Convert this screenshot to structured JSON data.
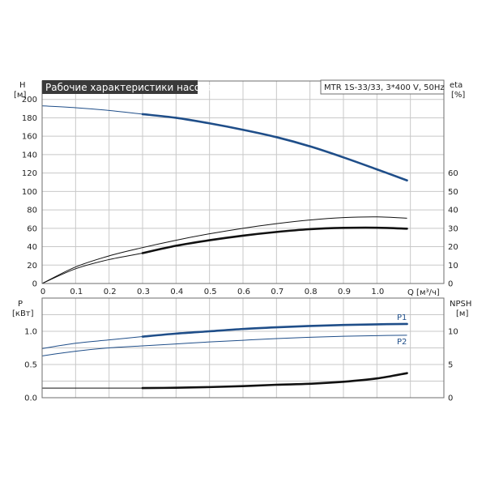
{
  "colors": {
    "accent": "#1f4e89",
    "ink": "#111111",
    "title_bg": "#3a3a3a"
  },
  "chart_data": [
    {
      "type": "line",
      "title": "Рабочие характеристики насоса",
      "subtitle": "MTR 1S-33/33, 3*400 V, 50Hz",
      "xlabel": "Q [м³/ч]",
      "ylabel": [
        "H",
        "[м]"
      ],
      "y2label": [
        "eta",
        "[%]"
      ],
      "xlim": [
        0,
        1.2
      ],
      "ylim": [
        0,
        220
      ],
      "y2lim": [
        0,
        110
      ],
      "grid": true,
      "x_ticks": [
        "0",
        "0.1",
        "0.2",
        "0.3",
        "0.4",
        "0.5",
        "0.6",
        "0.7",
        "0.8",
        "0.9",
        "1.0"
      ],
      "x_tick_values": [
        0,
        0.1,
        0.2,
        0.3,
        0.4,
        0.5,
        0.6,
        0.7,
        0.8,
        0.9,
        1.0
      ],
      "y_ticks": [
        "0",
        "20",
        "40",
        "60",
        "80",
        "100",
        "120",
        "140",
        "160",
        "180",
        "200"
      ],
      "y_tick_values": [
        0,
        20,
        40,
        60,
        80,
        100,
        120,
        140,
        160,
        180,
        200
      ],
      "y2_ticks": [
        "0",
        "10",
        "20",
        "30",
        "40",
        "50",
        "60"
      ],
      "y2_tick_values": [
        0,
        10,
        20,
        30,
        40,
        50,
        60
      ],
      "series": [
        {
          "axis": "left",
          "color": "#1f4e89",
          "x": [
            0,
            0.1,
            0.2,
            0.3,
            0.4,
            0.5,
            0.6,
            0.7,
            0.8,
            0.9,
            1.0,
            1.09
          ],
          "y": [
            193,
            191,
            188,
            184,
            180,
            174,
            167,
            159,
            149,
            137,
            124,
            112
          ],
          "bold_from": 0.3
        },
        {
          "axis": "right",
          "color": "#111111",
          "x": [
            0,
            0.1,
            0.2,
            0.3,
            0.4,
            0.5,
            0.6,
            0.7,
            0.8,
            0.9,
            1.0,
            1.09
          ],
          "y": [
            0,
            9,
            15,
            19.5,
            23.5,
            27,
            30,
            32.5,
            34.5,
            35.8,
            36.2,
            35.5
          ],
          "bold_from": 99
        },
        {
          "axis": "right",
          "color": "#111111",
          "x": [
            0,
            0.1,
            0.2,
            0.3,
            0.4,
            0.5,
            0.6,
            0.7,
            0.8,
            0.9,
            1.0,
            1.09
          ],
          "y": [
            0,
            8,
            13,
            16.5,
            20.5,
            23.5,
            26,
            28,
            29.5,
            30.2,
            30.3,
            29.8
          ],
          "bold_from": 0.3
        }
      ]
    },
    {
      "type": "line",
      "ylabel": [
        "P",
        "[кВт]"
      ],
      "y2label": [
        "NPSH",
        "[м]"
      ],
      "xlim": [
        0,
        1.2
      ],
      "ylim": [
        0,
        1.5
      ],
      "y2lim": [
        0,
        15
      ],
      "grid": true,
      "y_ticks": [
        "0.0",
        "0.5",
        "1.0"
      ],
      "y_tick_values": [
        0,
        0.5,
        1.0
      ],
      "y2_ticks": [
        "0",
        "5",
        "10"
      ],
      "y2_tick_values": [
        0,
        5,
        10
      ],
      "series": [
        {
          "name": "P1",
          "axis": "left",
          "color": "#1f4e89",
          "x": [
            0,
            0.1,
            0.2,
            0.3,
            0.4,
            0.5,
            0.6,
            0.7,
            0.8,
            0.9,
            1.0,
            1.09
          ],
          "y": [
            0.74,
            0.82,
            0.87,
            0.92,
            0.965,
            1.0,
            1.035,
            1.06,
            1.08,
            1.095,
            1.105,
            1.11
          ],
          "bold_from": 0.3
        },
        {
          "name": "P2",
          "axis": "left",
          "color": "#1f4e89",
          "x": [
            0,
            0.1,
            0.2,
            0.3,
            0.4,
            0.5,
            0.6,
            0.7,
            0.8,
            0.9,
            1.0,
            1.09
          ],
          "y": [
            0.63,
            0.7,
            0.75,
            0.78,
            0.81,
            0.84,
            0.865,
            0.89,
            0.91,
            0.925,
            0.935,
            0.94
          ],
          "bold_from": 99
        },
        {
          "axis": "right",
          "color": "#111111",
          "x": [
            0,
            0.1,
            0.2,
            0.3,
            0.4,
            0.5,
            0.6,
            0.7,
            0.8,
            0.9,
            1.0,
            1.09
          ],
          "y": [
            1.45,
            1.45,
            1.45,
            1.45,
            1.5,
            1.6,
            1.75,
            1.95,
            2.1,
            2.4,
            2.9,
            3.7
          ],
          "bold_from": 0.3
        }
      ]
    }
  ]
}
